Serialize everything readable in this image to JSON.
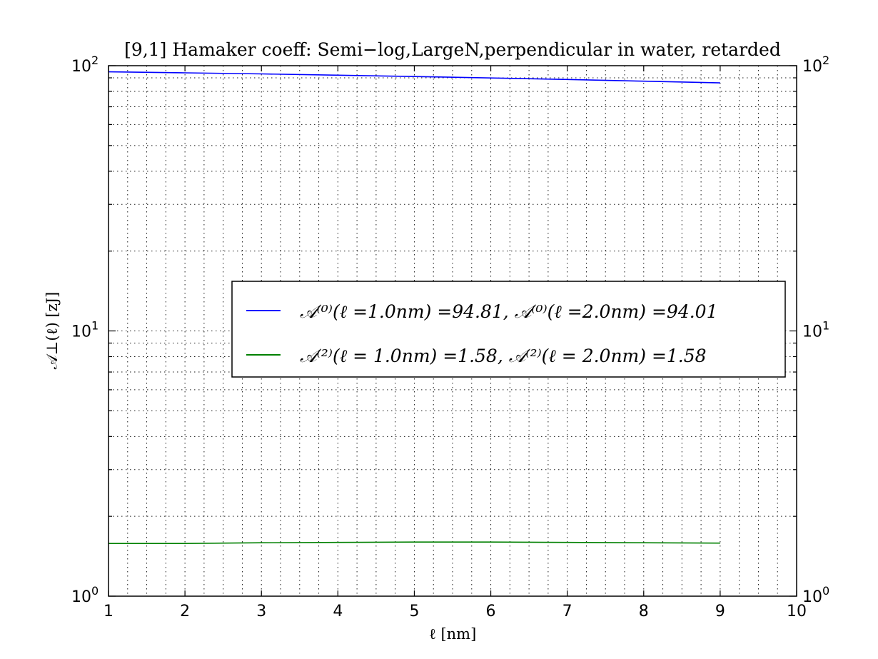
{
  "chart_data": {
    "type": "line",
    "title": "[9,1]  Hamaker coeff: Semi−log,LargeN,perpendicular in water, retarded",
    "xlabel": "ℓ   [nm]",
    "ylabel": "𝒜⊥(ℓ)   [zJ]",
    "xlim": [
      1,
      10
    ],
    "ylim": [
      1,
      100
    ],
    "yscale": "log",
    "grid": true,
    "legend_position": "center-right",
    "x_ticks": [
      "1",
      "2",
      "3",
      "4",
      "5",
      "6",
      "7",
      "8",
      "9",
      "10"
    ],
    "y_ticks": [
      {
        "value": 1,
        "mantissa": "10",
        "exponent": "0"
      },
      {
        "value": 10,
        "mantissa": "10",
        "exponent": "1"
      },
      {
        "value": 100,
        "mantissa": "10",
        "exponent": "2"
      }
    ],
    "series": [
      {
        "name": "𝒜⁽⁰⁾(ℓ =1.0nm) =94.81,    𝒜⁽⁰⁾(ℓ =2.0nm) =94.01",
        "color": "#0000ff",
        "x": [
          1,
          2,
          3,
          4,
          5,
          6,
          7,
          8,
          9
        ],
        "y": [
          94.81,
          94.01,
          93.1,
          92.1,
          91.0,
          89.9,
          88.7,
          87.4,
          86.1
        ]
      },
      {
        "name": "𝒜⁽²⁾(ℓ = 1.0nm) =1.58,    𝒜⁽²⁾(ℓ = 2.0nm) =1.58",
        "color": "#008000",
        "x": [
          1,
          2,
          3,
          4,
          5,
          6,
          7,
          8,
          9
        ],
        "y": [
          1.58,
          1.58,
          1.59,
          1.595,
          1.6,
          1.6,
          1.595,
          1.59,
          1.585
        ]
      }
    ]
  }
}
